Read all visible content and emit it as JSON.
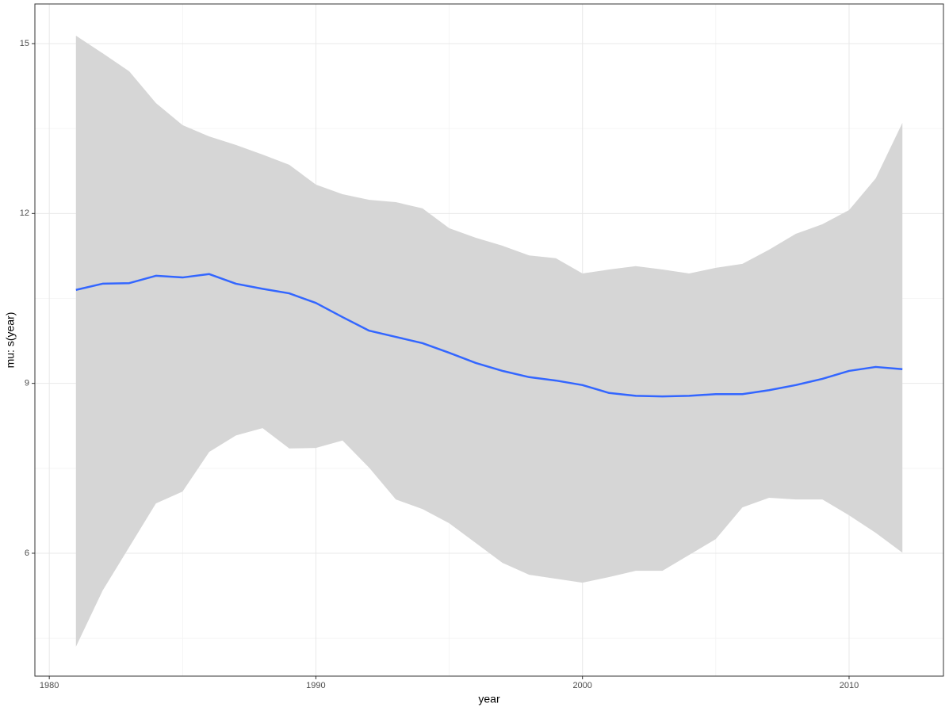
{
  "chart_data": {
    "type": "ribbon-line",
    "x_label": "year",
    "y_label": "mu: s(year)",
    "x": [
      1981,
      1982,
      1983,
      1984,
      1985,
      1986,
      1987,
      1988,
      1989,
      1990,
      1991,
      1992,
      1993,
      1994,
      1995,
      1996,
      1997,
      1998,
      1999,
      2000,
      2001,
      2002,
      2003,
      2004,
      2005,
      2006,
      2007,
      2008,
      2009,
      2010,
      2011,
      2012
    ],
    "values": [
      10.65,
      10.76,
      10.77,
      10.9,
      10.87,
      10.93,
      10.76,
      10.67,
      10.59,
      10.42,
      10.17,
      9.93,
      9.82,
      9.71,
      9.54,
      9.36,
      9.22,
      9.11,
      9.05,
      8.97,
      8.83,
      8.78,
      8.77,
      8.78,
      8.81,
      8.81,
      8.88,
      8.97,
      9.08,
      9.22,
      9.29,
      9.25
    ],
    "upper": [
      15.14,
      14.83,
      14.51,
      13.95,
      13.56,
      13.36,
      13.21,
      13.04,
      12.86,
      12.51,
      12.34,
      12.24,
      12.2,
      12.09,
      11.74,
      11.57,
      11.43,
      11.26,
      11.21,
      10.94,
      11.01,
      11.07,
      11.01,
      10.94,
      11.04,
      11.11,
      11.36,
      11.64,
      11.81,
      12.06,
      12.62,
      13.6
    ],
    "lower": [
      4.35,
      5.34,
      6.11,
      6.88,
      7.09,
      7.79,
      8.08,
      8.21,
      7.85,
      7.86,
      7.99,
      7.51,
      6.95,
      6.78,
      6.53,
      6.18,
      5.83,
      5.62,
      5.55,
      5.48,
      5.58,
      5.69,
      5.69,
      5.97,
      6.25,
      6.81,
      6.98,
      6.95,
      6.95,
      6.67,
      6.36,
      6.01
    ],
    "line_color": "#3366ff",
    "ribbon_color": "#d6d6d6",
    "xlim": [
      1979.46,
      2013.54
    ],
    "ylim": [
      3.83,
      15.7
    ],
    "xticks": [
      1980,
      1990,
      2000,
      2010
    ],
    "yticks": [
      6,
      9,
      12,
      15
    ],
    "x_minor_grid": [
      1985,
      1995,
      2005
    ],
    "y_minor_grid": [
      4.5,
      7.5,
      10.5,
      13.5
    ],
    "grid": true
  }
}
